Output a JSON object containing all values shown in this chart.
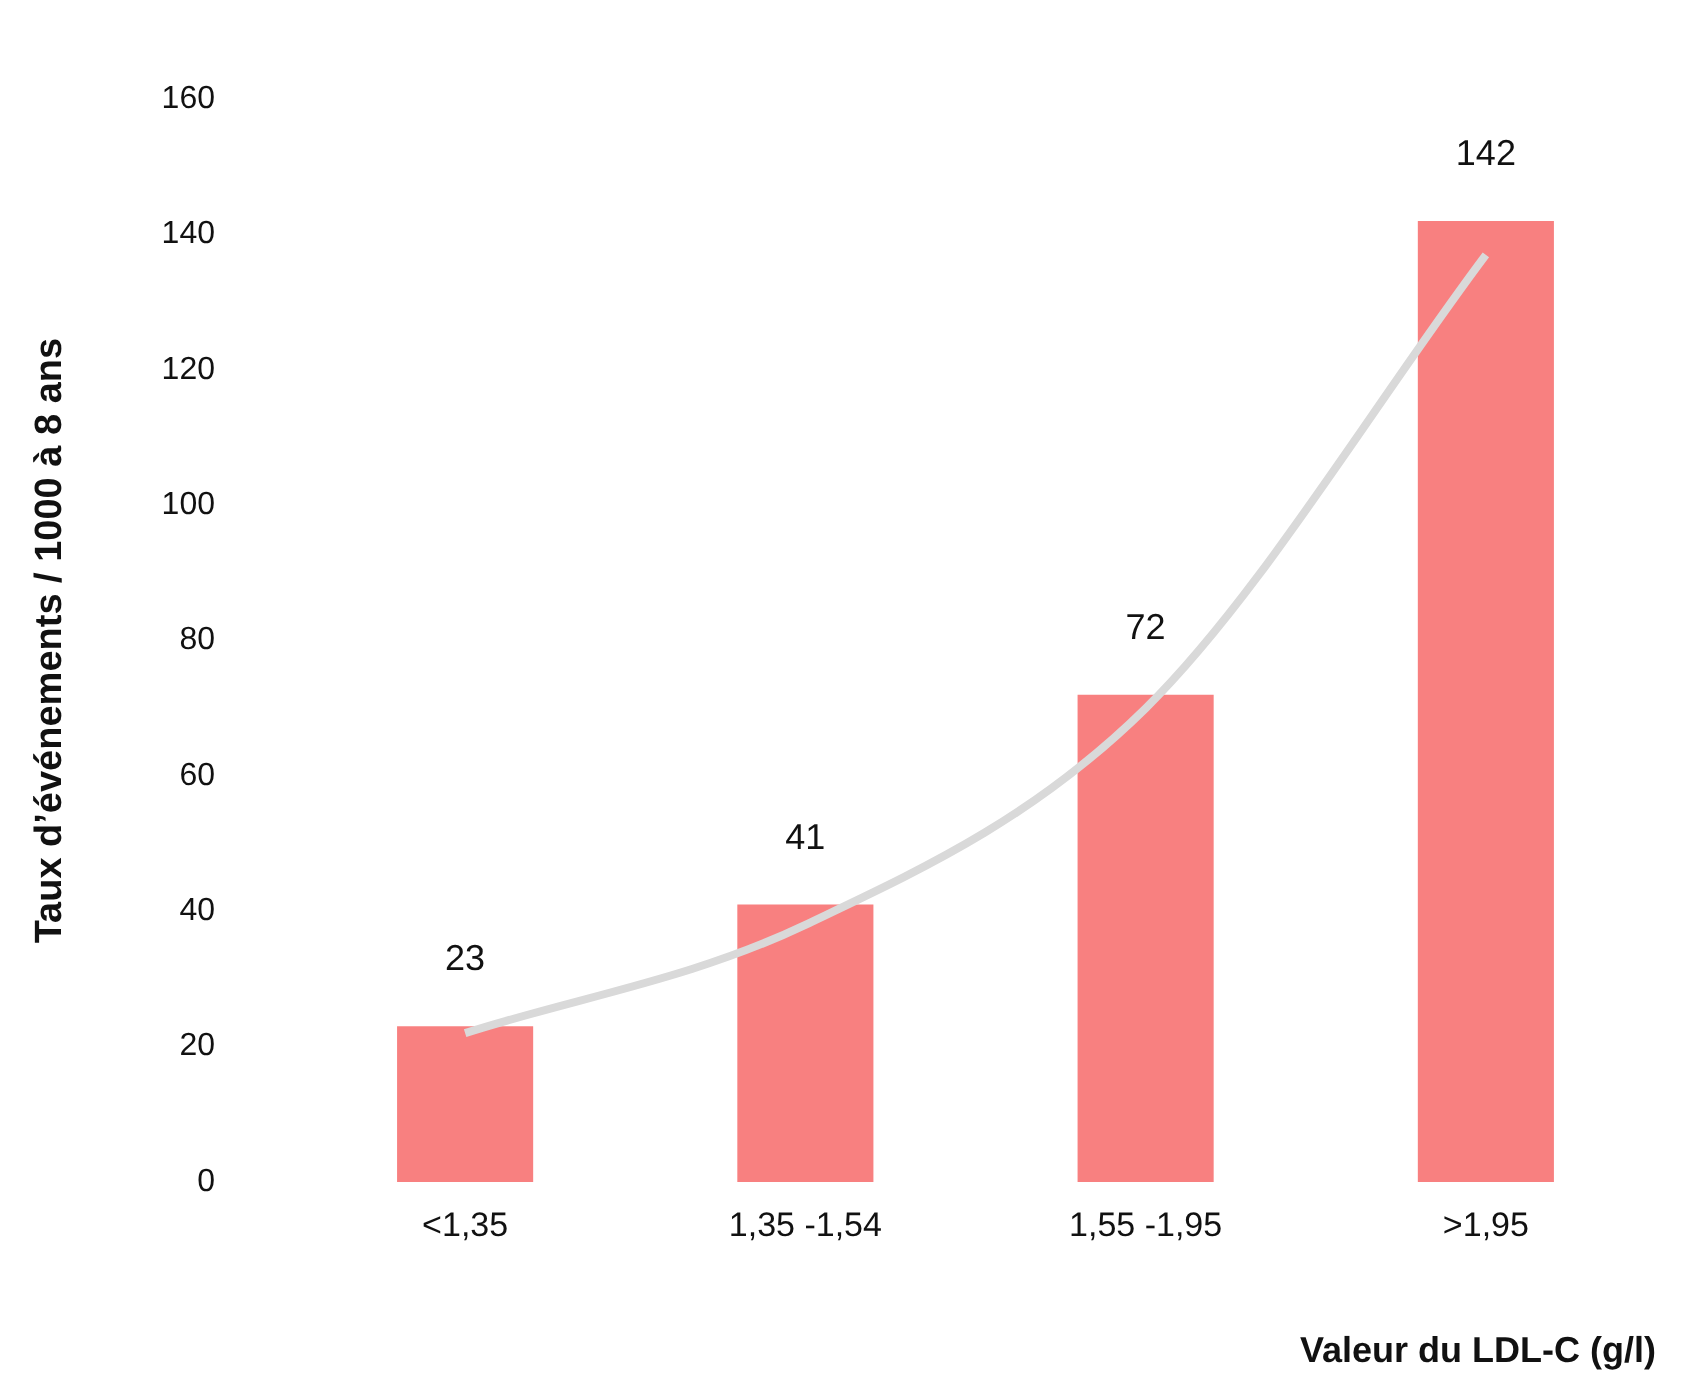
{
  "chart_data": {
    "type": "bar",
    "xlabel": "Valeur du LDL-C (g/l)",
    "ylabel": "Taux d’événements / 1000 à 8 ans",
    "categories": [
      "<1,35",
      "1,35 -1,54",
      "1,55 -1,95",
      ">1,95"
    ],
    "series": [
      {
        "color": "#f88080",
        "values": [
          23,
          41,
          72,
          142
        ],
        "value_labels": [
          "23",
          "41",
          "72",
          "142"
        ]
      },
      {
        "type": "line",
        "color": "#d9d9d9",
        "values": [
          22,
          38,
          70,
          137
        ]
      }
    ],
    "ylim": [
      0,
      160
    ],
    "yticks": [
      0,
      20,
      40,
      60,
      80,
      100,
      120,
      140,
      160
    ],
    "grid": false,
    "legend": false
  }
}
